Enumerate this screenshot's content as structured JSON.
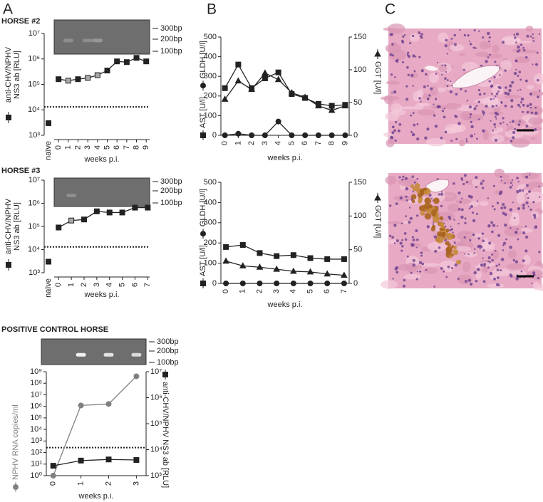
{
  "panel_labels": [
    "A",
    "B",
    "C"
  ],
  "chart_data": [
    {
      "type": "line",
      "log_y": true,
      "title": "HORSE #2",
      "gel_labels": [
        "300bp",
        "200bp",
        "100bp"
      ],
      "ylabel": [
        "anti-CHV/NPHV",
        "NS3 ab [RLU]"
      ],
      "xlabel": "weeks p.i.",
      "baseline": {
        "label": "naïve",
        "value": 3000
      },
      "x": [
        0,
        1,
        2,
        3,
        4,
        5,
        6,
        7,
        8,
        9
      ],
      "xlim": [
        -0.45,
        9.35
      ],
      "xticks": [
        0,
        1,
        2,
        3,
        4,
        5,
        6,
        7,
        8,
        9
      ],
      "values": [
        160000,
        140000,
        160000,
        180000,
        230000,
        350000,
        800000,
        750000,
        1100000,
        800000
      ],
      "point_colors": [
        "#222222",
        "#a8a8a8",
        "#222222",
        "#a8a8a8",
        "#a8a8a8",
        "#222222",
        "#222222",
        "#222222",
        "#222222",
        "#222222"
      ],
      "color": "#222222",
      "marker": "square",
      "threshold": 13000,
      "ylim": [
        1000,
        10000000
      ],
      "yticks": [
        {
          "value": 1000,
          "label": "10³"
        },
        {
          "value": 10000,
          "label": "10⁴"
        },
        {
          "value": 100000,
          "label": "10⁵"
        },
        {
          "value": 1000000,
          "label": "10⁶"
        },
        {
          "value": 10000000,
          "label": "10⁷"
        }
      ]
    },
    {
      "type": "line",
      "log_y": true,
      "title": "HORSE #3",
      "gel_labels": [
        "300bp",
        "200bp",
        "100bp"
      ],
      "ylabel": [
        "anti-CHV/NPHV",
        "NS3 ab [RLU]"
      ],
      "xlabel": "weeks p.i.",
      "baseline": {
        "label": "naïve",
        "value": 3000
      },
      "x": [
        0,
        1,
        2,
        3,
        4,
        5,
        6,
        7
      ],
      "xlim": [
        -0.35,
        7.15
      ],
      "xticks": [
        0,
        1,
        2,
        3,
        4,
        5,
        6,
        7
      ],
      "values": [
        90000,
        180000,
        200000,
        450000,
        400000,
        400000,
        650000,
        650000
      ],
      "point_colors": [
        "#222222",
        "#a8a8a8",
        "#222222",
        "#222222",
        "#222222",
        "#222222",
        "#222222",
        "#222222"
      ],
      "color": "#222222",
      "marker": "square",
      "threshold": 13000,
      "ylim": [
        1000,
        10000000
      ],
      "yticks": [
        {
          "value": 1000,
          "label": "10³"
        },
        {
          "value": 10000,
          "label": "10⁴"
        },
        {
          "value": 100000,
          "label": "10⁵"
        },
        {
          "value": 1000000,
          "label": "10⁶"
        },
        {
          "value": 10000000,
          "label": "10⁷"
        }
      ]
    },
    {
      "type": "line",
      "log_y": true,
      "title": "POSITIVE CONTROL HORSE",
      "gel_labels": [
        "300bp",
        "200bp",
        "100bp"
      ],
      "xlabel": "weeks p.i.",
      "x": [
        0,
        1,
        2,
        3
      ],
      "xlim": [
        -0.25,
        3.35
      ],
      "xticks": [
        0,
        1,
        2,
        3
      ],
      "series": [
        {
          "name": "NPHV RNA copies/ml",
          "color": "#808080",
          "marker": "circle",
          "values": [
            1,
            1200000,
            1600000,
            400000000
          ]
        },
        {
          "name": "anti-CHV/NPHV NS3 ab [RLU]",
          "color": "#222222",
          "marker": "square",
          "axis": "y2",
          "values": [
            2400,
            3800,
            4200,
            4000
          ]
        }
      ],
      "threshold": 12000,
      "threshold_axis": "y2",
      "ylim": [
        1,
        1000000000
      ],
      "yticks": [
        {
          "value": 1,
          "label": "10⁰"
        },
        {
          "value": 10,
          "label": "10¹"
        },
        {
          "value": 100,
          "label": "10²"
        },
        {
          "value": 1000,
          "label": "10³"
        },
        {
          "value": 10000,
          "label": "10⁴"
        },
        {
          "value": 100000,
          "label": "10⁵"
        },
        {
          "value": 1000000,
          "label": "10⁶"
        },
        {
          "value": 10000000,
          "label": "10⁷"
        },
        {
          "value": 100000000,
          "label": "10⁸"
        },
        {
          "value": 1000000000,
          "label": "10⁹"
        }
      ],
      "y2lim": [
        1000,
        10000000
      ],
      "y2ticks": [
        {
          "value": 1000,
          "label": "10³"
        },
        {
          "value": 10000,
          "label": "10⁴"
        },
        {
          "value": 100000,
          "label": "10⁵"
        },
        {
          "value": 1000000,
          "label": "10⁶"
        },
        {
          "value": 10000000,
          "label": "10⁷"
        }
      ]
    },
    {
      "type": "line",
      "xlabel": "weeks p.i.",
      "x": [
        0,
        1,
        2,
        3,
        4,
        5,
        6,
        7,
        8,
        9
      ],
      "xlim": [
        -0.3,
        9.3
      ],
      "xticks": [
        0,
        1,
        2,
        3,
        4,
        5,
        6,
        7,
        8,
        9
      ],
      "series": [
        {
          "name": "AST [U/l]",
          "color": "#222222",
          "marker": "square",
          "values": [
            240,
            360,
            240,
            290,
            320,
            210,
            190,
            160,
            150,
            155
          ]
        },
        {
          "name": "GLDH [U/l]",
          "color": "#222222",
          "marker": "circle",
          "values": [
            0,
            8,
            0,
            0,
            70,
            0,
            0,
            0,
            0,
            0
          ]
        },
        {
          "name": "GGT [U/l]",
          "color": "#222222",
          "marker": "triangle",
          "axis": "y2",
          "values": [
            55,
            83,
            70,
            95,
            85,
            65,
            58,
            45,
            38,
            45
          ]
        }
      ],
      "ylim": [
        0,
        500
      ],
      "yticks": [
        0,
        100,
        200,
        300,
        400,
        500
      ],
      "y2lim": [
        0,
        150
      ],
      "y2ticks": [
        0,
        50,
        100,
        150
      ]
    },
    {
      "type": "line",
      "xlabel": "weeks p.i.",
      "x": [
        0,
        1,
        2,
        3,
        4,
        5,
        6,
        7
      ],
      "xlim": [
        -0.3,
        7.3
      ],
      "xticks": [
        0,
        1,
        2,
        3,
        4,
        5,
        6,
        7
      ],
      "series": [
        {
          "name": "AST [U/l]",
          "color": "#222222",
          "marker": "square",
          "values": [
            180,
            190,
            150,
            135,
            140,
            125,
            120,
            120
          ]
        },
        {
          "name": "GLDH [U/l]",
          "color": "#222222",
          "marker": "circle",
          "values": [
            0,
            0,
            0,
            0,
            0,
            0,
            0,
            0
          ]
        },
        {
          "name": "GGT [U/l]",
          "color": "#222222",
          "marker": "triangle",
          "axis": "y2",
          "values": [
            33,
            26,
            24,
            21,
            18,
            17,
            14,
            12
          ]
        }
      ],
      "ylim": [
        0,
        500
      ],
      "yticks": [
        0,
        100,
        200,
        300,
        400,
        500
      ],
      "y2lim": [
        0,
        150
      ],
      "y2ticks": [
        0,
        50,
        100,
        150
      ]
    }
  ]
}
